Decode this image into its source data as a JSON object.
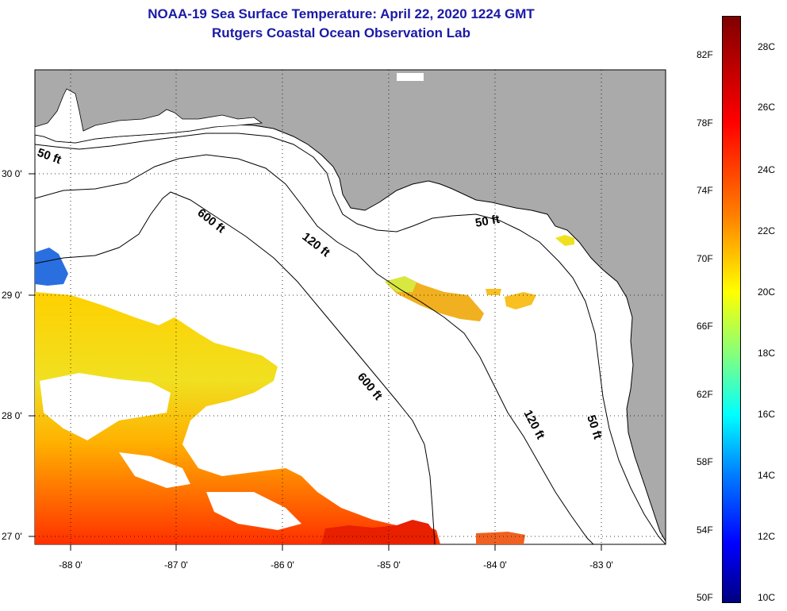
{
  "header": {
    "title": "NOAA-19 Sea Surface Temperature:  April 22, 2020 1224 GMT",
    "subtitle": "Rutgers Coastal Ocean Observation Lab"
  },
  "map": {
    "lat_labels": [
      "30 0'",
      "29 0'",
      "28 0'",
      "27 0'"
    ],
    "lon_labels": [
      "-88 0'",
      "-87 0'",
      "-86 0'",
      "-85 0'",
      "-84 0'",
      "-83 0'"
    ],
    "contours": [
      {
        "label": "50 ft"
      },
      {
        "label": "50 ft"
      },
      {
        "label": "50 ft"
      },
      {
        "label": "120 ft"
      },
      {
        "label": "120 ft"
      },
      {
        "label": "600 ft"
      },
      {
        "label": "600 ft"
      }
    ],
    "colors": {
      "land": "#aaaaaa",
      "water": "#ffffff",
      "coast": "#000000"
    }
  },
  "colorbar": {
    "fahrenheit": [
      "82F",
      "78F",
      "74F",
      "70F",
      "66F",
      "62F",
      "58F",
      "54F",
      "50F"
    ],
    "celsius": [
      "28C",
      "26C",
      "24C",
      "22C",
      "20C",
      "18C",
      "16C",
      "14C",
      "12C",
      "10C"
    ],
    "colors": [
      "#800000",
      "#ff0000",
      "#ff8000",
      "#ffff00",
      "#80ff80",
      "#00ffff",
      "#0080ff",
      "#0000ff",
      "#000080"
    ]
  }
}
